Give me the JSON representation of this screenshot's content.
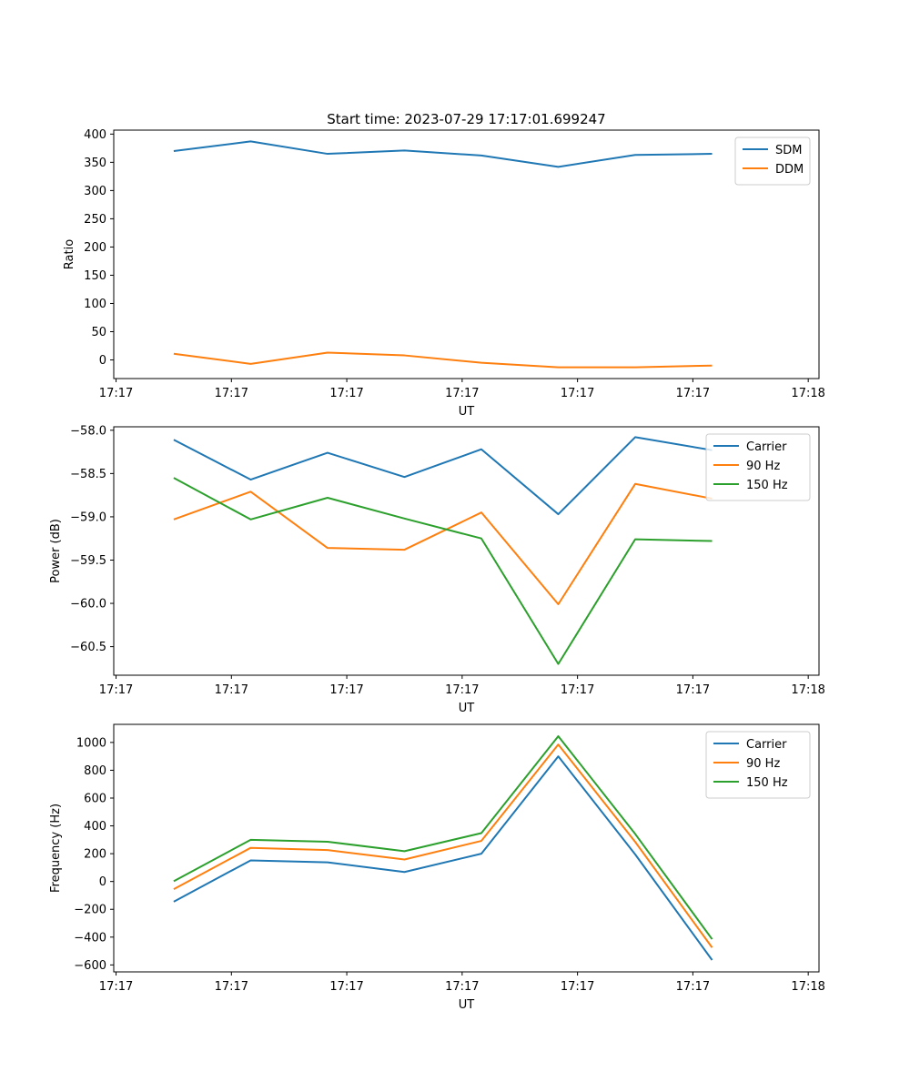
{
  "title": "Start time: 2023-07-29 17:17:01.699247",
  "colors": {
    "c0": "#1f77b4",
    "c1": "#ff7f0e",
    "c2": "#2ca02c"
  },
  "chart_data": [
    {
      "type": "line",
      "id": "ratio",
      "title": "Start time: 2023-07-29 17:17:01.699247",
      "xlabel": "UT",
      "ylabel": "Ratio",
      "x": [
        0,
        1,
        2,
        3,
        4,
        5,
        6,
        7
      ],
      "xlim": [
        -0.78,
        8.39
      ],
      "xtick_positions": [
        -0.75,
        0.75,
        2.25,
        3.75,
        5.25,
        6.75,
        8.25
      ],
      "xtick_labels": [
        "17:17",
        "17:17",
        "17:17",
        "17:17",
        "17:17",
        "17:17",
        "17:18"
      ],
      "ylim": [
        -33,
        407
      ],
      "yticks": [
        0,
        50,
        100,
        150,
        200,
        250,
        300,
        350,
        400
      ],
      "yticklabels": [
        "0",
        "50",
        "100",
        "150",
        "200",
        "250",
        "300",
        "350",
        "400"
      ],
      "legend": "upper-right",
      "series": [
        {
          "name": "SDM",
          "color": "#1f77b4",
          "values": [
            370,
            387,
            365,
            371,
            362,
            342,
            363,
            365
          ]
        },
        {
          "name": "DDM",
          "color": "#ff7f0e",
          "values": [
            11,
            -7,
            13,
            8,
            -5,
            -13,
            -13,
            -10
          ]
        }
      ]
    },
    {
      "type": "line",
      "id": "power",
      "title": "",
      "xlabel": "UT",
      "ylabel": "Power (dB)",
      "x": [
        0,
        1,
        2,
        3,
        4,
        5,
        6,
        7
      ],
      "xlim": [
        -0.78,
        8.39
      ],
      "xtick_positions": [
        -0.75,
        0.75,
        2.25,
        3.75,
        5.25,
        6.75,
        8.25
      ],
      "xtick_labels": [
        "17:17",
        "17:17",
        "17:17",
        "17:17",
        "17:17",
        "17:17",
        "17:18"
      ],
      "ylim": [
        -60.83,
        -57.96
      ],
      "yticks": [
        -60.5,
        -60.0,
        -59.5,
        -59.0,
        -58.5,
        -58.0
      ],
      "yticklabels": [
        "−60.5",
        "−60.0",
        "−59.5",
        "−59.0",
        "−58.5",
        "−58.0"
      ],
      "legend": "upper-right",
      "series": [
        {
          "name": "Carrier",
          "color": "#1f77b4",
          "values": [
            -58.11,
            -58.57,
            -58.26,
            -58.54,
            -58.22,
            -58.97,
            -58.08,
            -58.23
          ]
        },
        {
          "name": "90 Hz",
          "color": "#ff7f0e",
          "values": [
            -59.03,
            -58.71,
            -59.36,
            -59.38,
            -58.95,
            -60.01,
            -58.62,
            -58.79
          ]
        },
        {
          "name": "150 Hz",
          "color": "#2ca02c",
          "values": [
            -58.55,
            -59.03,
            -58.78,
            -59.02,
            -59.25,
            -60.7,
            -59.26,
            -59.28
          ]
        }
      ]
    },
    {
      "type": "line",
      "id": "frequency",
      "title": "",
      "xlabel": "UT",
      "ylabel": "Frequency (Hz)",
      "x": [
        0,
        1,
        2,
        3,
        4,
        5,
        6,
        7
      ],
      "xlim": [
        -0.78,
        8.39
      ],
      "xtick_positions": [
        -0.75,
        0.75,
        2.25,
        3.75,
        5.25,
        6.75,
        8.25
      ],
      "xtick_labels": [
        "17:17",
        "17:17",
        "17:17",
        "17:17",
        "17:17",
        "17:17",
        "17:18"
      ],
      "ylim": [
        -650,
        1130
      ],
      "yticks": [
        -600,
        -400,
        -200,
        0,
        200,
        400,
        600,
        800,
        1000
      ],
      "yticklabels": [
        "−600",
        "−400",
        "−200",
        "0",
        "200",
        "400",
        "600",
        "800",
        "1000"
      ],
      "legend": "upper-right",
      "series": [
        {
          "name": "Carrier",
          "color": "#1f77b4",
          "values": [
            -145,
            152,
            138,
            68,
            200,
            900,
            195,
            -565
          ]
        },
        {
          "name": "90 Hz",
          "color": "#ff7f0e",
          "values": [
            -55,
            242,
            226,
            158,
            292,
            985,
            285,
            -475
          ]
        },
        {
          "name": "150 Hz",
          "color": "#2ca02c",
          "values": [
            2,
            300,
            286,
            218,
            348,
            1045,
            342,
            -415
          ]
        }
      ]
    }
  ]
}
